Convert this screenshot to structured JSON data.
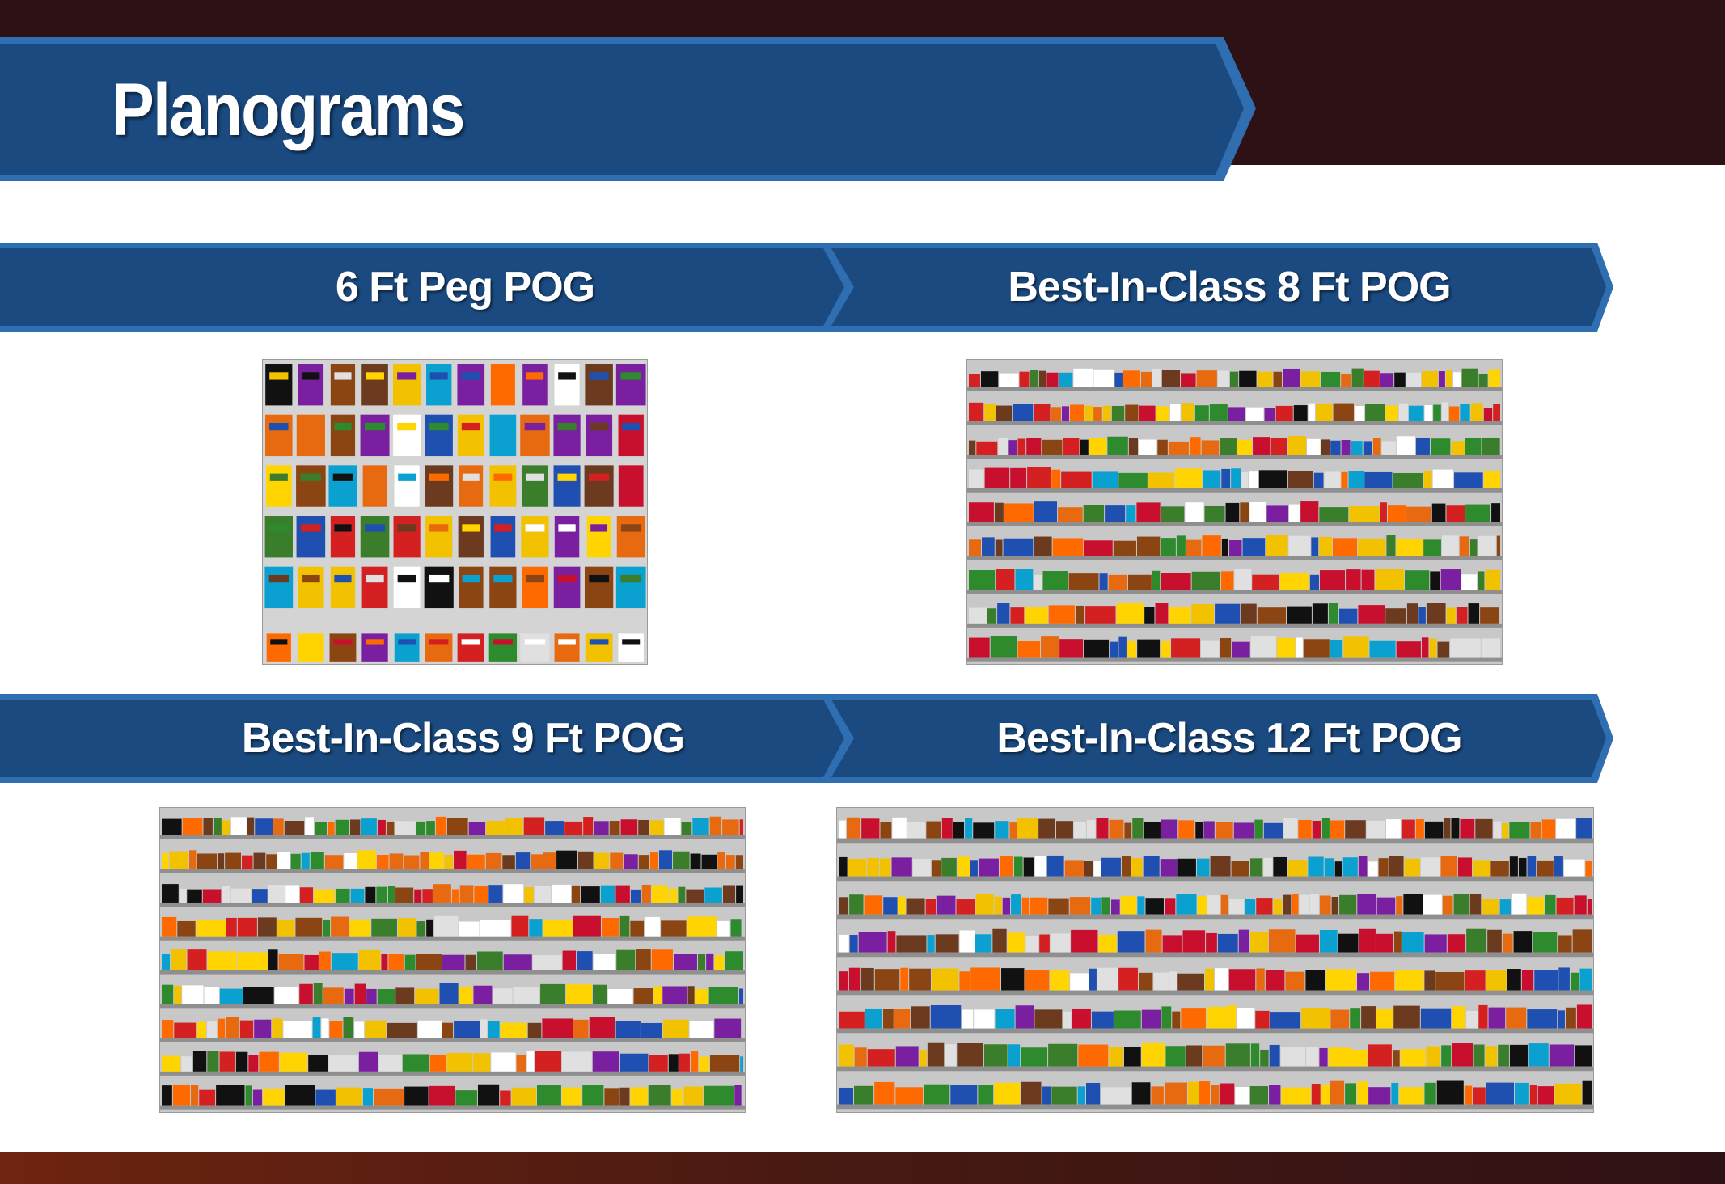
{
  "title": "Planograms",
  "sections": [
    {
      "label": "6 Ft Peg POG"
    },
    {
      "label": "Best-In-Class 8 Ft POG"
    },
    {
      "label": "Best-In-Class 9 Ft POG"
    },
    {
      "label": "Best-In-Class 12 Ft POG"
    }
  ],
  "planograms": [
    {
      "name": "6 Ft Peg POG",
      "style": "peg",
      "rows": 6,
      "cols": 12
    },
    {
      "name": "Best-In-Class 8 Ft POG",
      "style": "shelf",
      "shelves": 9
    },
    {
      "name": "Best-In-Class 9 Ft POG",
      "style": "shelf",
      "shelves": 9
    },
    {
      "name": "Best-In-Class 12 Ft POG",
      "style": "shelf",
      "shelves": 8
    }
  ],
  "colors": {
    "banner_blue": "#1a4a80",
    "banner_edge": "#2f6eb0",
    "header_dark": "#2e1115",
    "footer_warm": "#6e2410"
  }
}
